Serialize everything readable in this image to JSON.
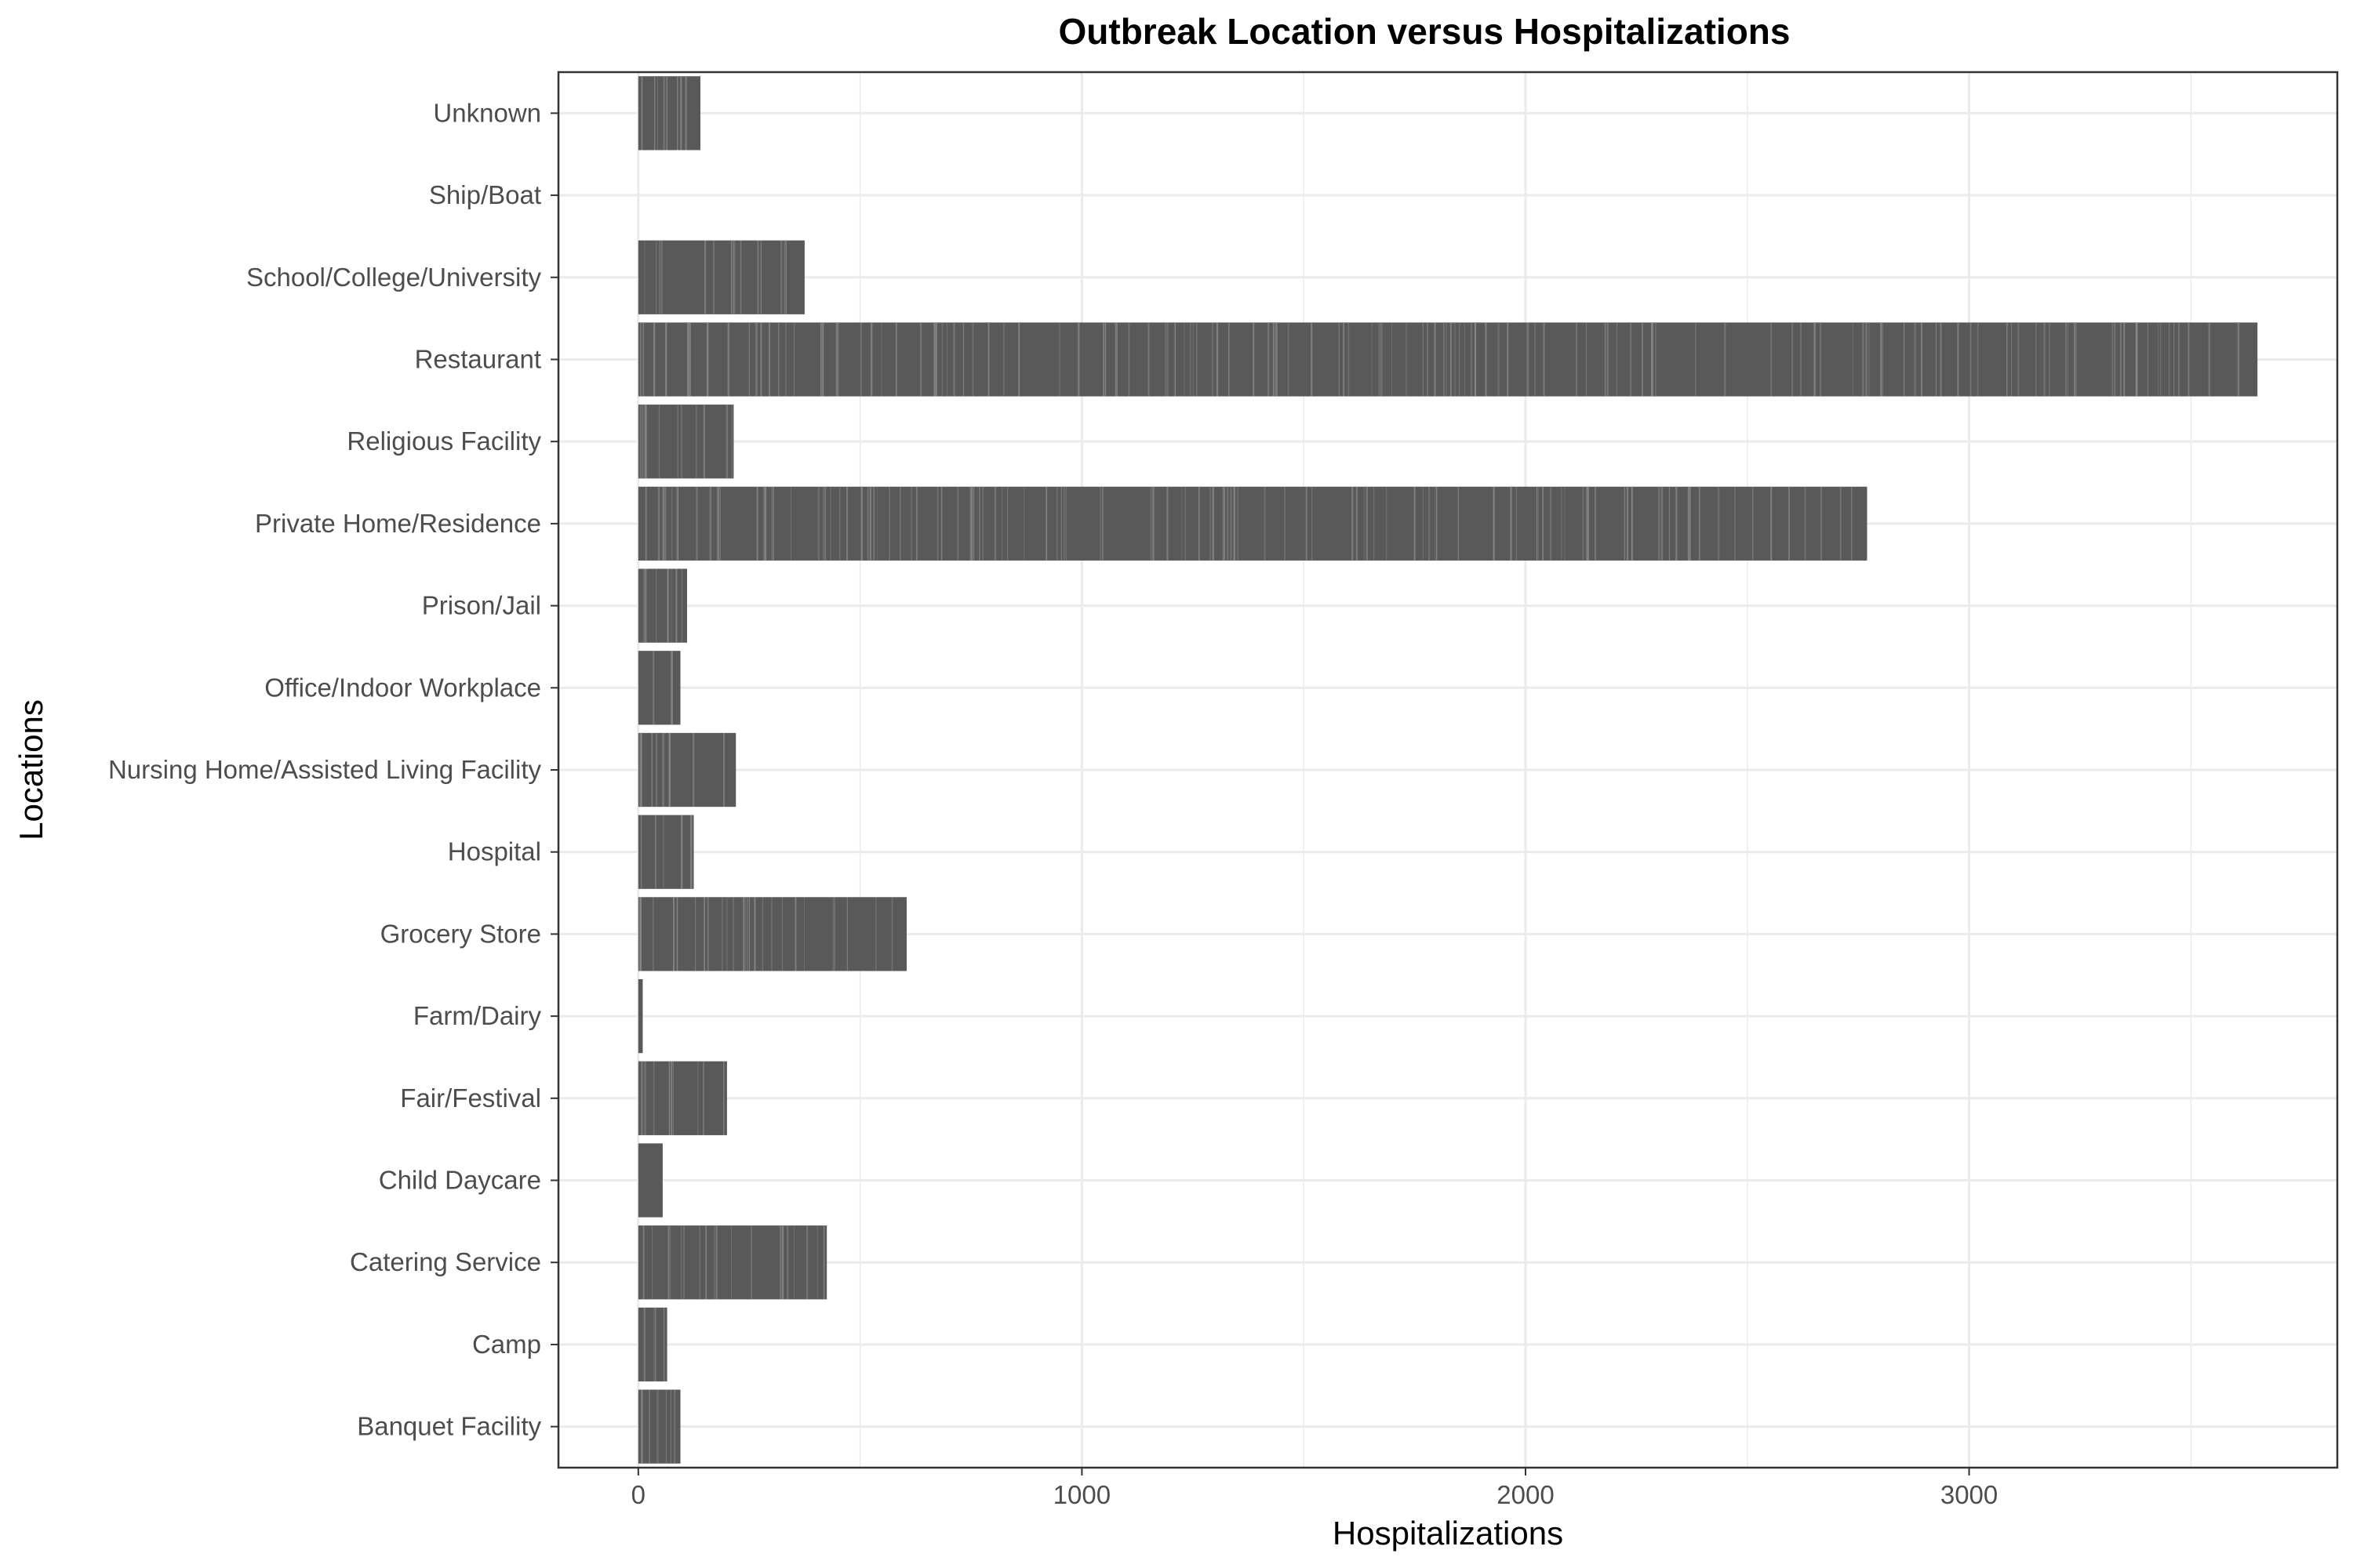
{
  "chart_data": {
    "type": "bar",
    "orientation": "horizontal",
    "title": "Outbreak Location versus Hospitalizations",
    "xlabel": "Hospitalizations",
    "ylabel": "Locations",
    "categories": [
      "Banquet Facility",
      "Camp",
      "Catering Service",
      "Child Daycare",
      "Fair/Festival",
      "Farm/Dairy",
      "Grocery Store",
      "Hospital",
      "Nursing Home/Assisted Living Facility",
      "Office/Indoor Workplace",
      "Prison/Jail",
      "Private Home/Residence",
      "Religious Facility",
      "Restaurant",
      "School/College/University",
      "Ship/Boat",
      "Unknown"
    ],
    "values": [
      95,
      65,
      425,
      55,
      200,
      10,
      605,
      125,
      220,
      95,
      110,
      2770,
      215,
      3650,
      375,
      0,
      140
    ],
    "xlim": [
      -180,
      3830
    ],
    "xticks": [
      0,
      1000,
      2000,
      3000
    ],
    "xtick_labels": [
      "0",
      "1000",
      "2000",
      "3000"
    ],
    "grid": true,
    "colors": {
      "bar": "#595959",
      "bar_stripe": "#8c8c8c",
      "panel_border": "#333333",
      "grid": "#ebebeb"
    }
  }
}
